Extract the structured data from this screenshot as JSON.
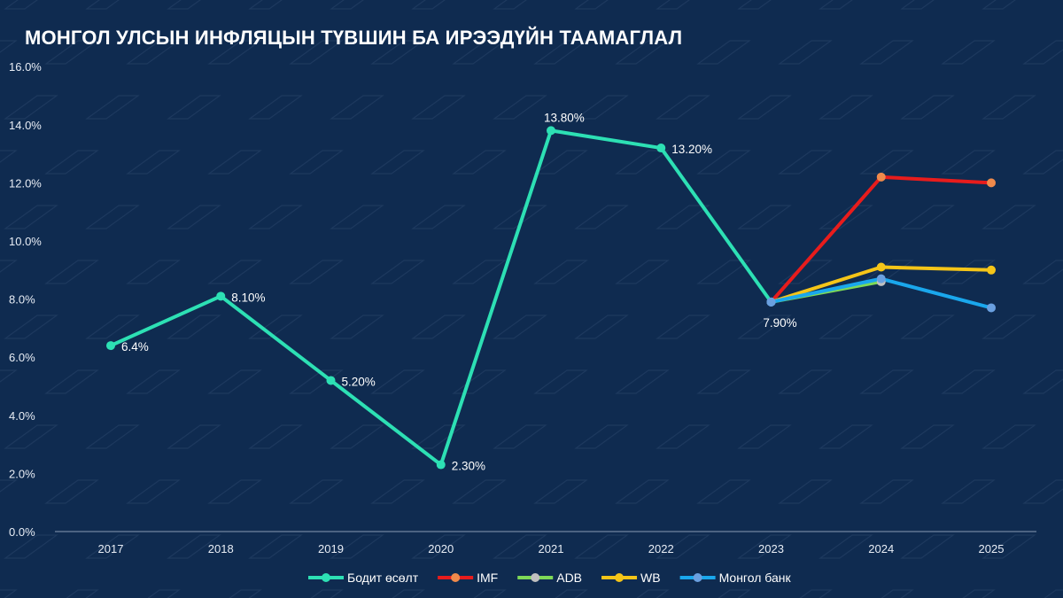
{
  "chart_data": {
    "type": "line",
    "title": "МОНГОЛ УЛСЫН ИНФЛЯЦЫН ТҮВШИН БА ИРЭЭДҮЙН ТААМАГЛАЛ",
    "categories": [
      "2017",
      "2018",
      "2019",
      "2020",
      "2021",
      "2022",
      "2023",
      "2024",
      "2025"
    ],
    "ylim": [
      0,
      16
    ],
    "yticks": [
      "0.0%",
      "2.0%",
      "4.0%",
      "6.0%",
      "8.0%",
      "10.0%",
      "12.0%",
      "14.0%",
      "16.0%"
    ],
    "grid": false,
    "legend": "bottom",
    "series": [
      {
        "name": "Бодит өсөлт",
        "color": "#2de0b4",
        "marker": "#2de0b4",
        "values": [
          6.4,
          8.1,
          5.2,
          2.3,
          13.8,
          13.2,
          7.9,
          null,
          null
        ],
        "labels": [
          "6.4%",
          "8.10%",
          "5.20%",
          "2.30%",
          "13.80%",
          "13.20%",
          "7.90%",
          "",
          ""
        ]
      },
      {
        "name": "IMF",
        "color": "#e81c1c",
        "marker": "#f08a4b",
        "values": [
          null,
          null,
          null,
          null,
          null,
          null,
          7.9,
          12.2,
          12.0
        ]
      },
      {
        "name": "ADB",
        "color": "#7ed957",
        "marker": "#c0c0c0",
        "values": [
          null,
          null,
          null,
          null,
          null,
          null,
          7.9,
          8.6,
          null
        ]
      },
      {
        "name": "WB",
        "color": "#f5c518",
        "marker": "#f5c518",
        "values": [
          null,
          null,
          null,
          null,
          null,
          null,
          7.9,
          9.1,
          9.0
        ]
      },
      {
        "name": "Монгол банк",
        "color": "#1aa7ec",
        "marker": "#6aa0e0",
        "values": [
          null,
          null,
          null,
          null,
          null,
          null,
          7.9,
          8.7,
          7.7
        ]
      }
    ]
  }
}
